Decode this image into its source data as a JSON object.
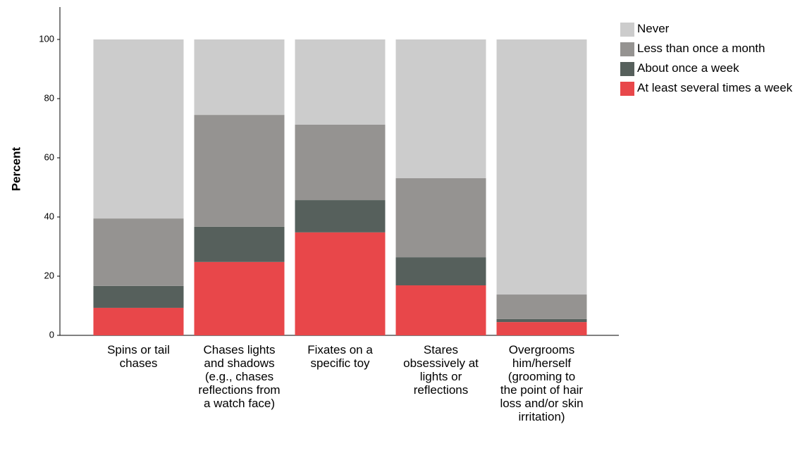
{
  "chart_data": {
    "type": "stacked_bar",
    "ylabel": "Percent",
    "categories": [
      "Spins or tail chases",
      "Chases lights and shadows (e.g., chases reflections from a watch face)",
      "Fixates on a specific toy",
      "Stares obsessively at lights or reflections",
      "Overgrooms him/herself (grooming to the point of hair loss and/or skin irritation)"
    ],
    "series": [
      {
        "name": "At least several times a week",
        "color": "#e8474a",
        "values": [
          9.3,
          24.8,
          34.8,
          16.9,
          4.5
        ]
      },
      {
        "name": "About once a week",
        "color": "#56605c",
        "values": [
          7.4,
          11.9,
          10.9,
          9.5,
          1.0
        ]
      },
      {
        "name": "Less than once a month",
        "color": "#959391",
        "values": [
          22.8,
          37.8,
          25.5,
          26.7,
          8.3
        ]
      },
      {
        "name": "Never",
        "color": "#cccccc",
        "values": [
          60.5,
          25.5,
          28.8,
          46.9,
          86.2
        ]
      }
    ],
    "ylim": [
      0,
      110
    ],
    "yticks": [
      0,
      20,
      40,
      60,
      80,
      100
    ],
    "grid": false,
    "legend": "right"
  }
}
